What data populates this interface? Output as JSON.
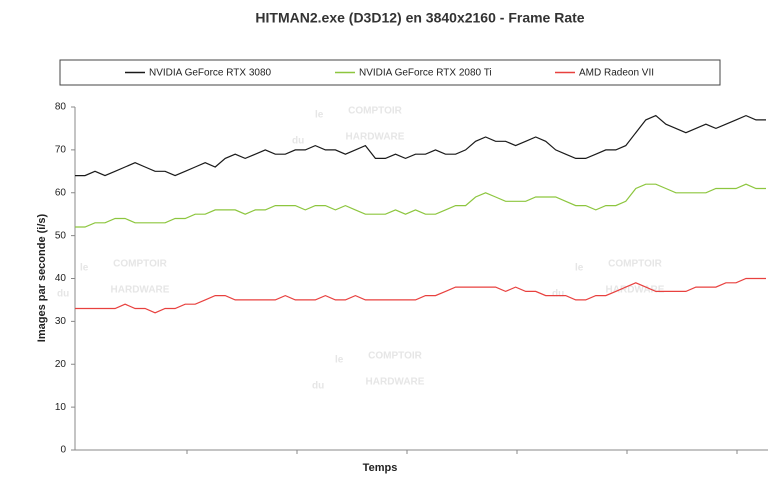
{
  "chart_data": {
    "type": "line",
    "title": "HITMAN2.exe (D3D12) en 3840x2160 - Frame Rate",
    "x_label": "Temps",
    "y_label": "Images par seconde (i/s)",
    "ylim": [
      0,
      80
    ],
    "yticks": [
      0,
      10,
      20,
      30,
      40,
      50,
      60,
      70,
      80
    ],
    "grid": false,
    "legend": "top",
    "watermark": {
      "top": "le",
      "main": "COMPTOIR",
      "sub": "du",
      "brand": "HARDWARE"
    },
    "series": [
      {
        "name": "NVIDIA GeForce RTX 3080",
        "color": "#1a1a1a",
        "values": [
          64,
          64,
          65,
          64,
          65,
          66,
          67,
          66,
          65,
          65,
          64,
          65,
          66,
          67,
          66,
          68,
          69,
          68,
          69,
          70,
          69,
          69,
          70,
          70,
          71,
          70,
          70,
          69,
          70,
          71,
          68,
          68,
          69,
          68,
          69,
          69,
          70,
          69,
          69,
          70,
          72,
          73,
          72,
          72,
          71,
          72,
          73,
          72,
          70,
          69,
          68,
          68,
          69,
          70,
          70,
          71,
          74,
          77,
          78,
          76,
          75,
          74,
          75,
          76,
          75,
          76,
          77,
          78,
          77,
          77
        ]
      },
      {
        "name": "NVIDIA GeForce RTX 2080 Ti",
        "color": "#8dc63f",
        "values": [
          52,
          52,
          53,
          53,
          54,
          54,
          53,
          53,
          53,
          53,
          54,
          54,
          55,
          55,
          56,
          56,
          56,
          55,
          56,
          56,
          57,
          57,
          57,
          56,
          57,
          57,
          56,
          57,
          56,
          55,
          55,
          55,
          56,
          55,
          56,
          55,
          55,
          56,
          57,
          57,
          59,
          60,
          59,
          58,
          58,
          58,
          59,
          59,
          59,
          58,
          57,
          57,
          56,
          57,
          57,
          58,
          61,
          62,
          62,
          61,
          60,
          60,
          60,
          60,
          61,
          61,
          61,
          62,
          61,
          61
        ]
      },
      {
        "name": "AMD Radeon VII",
        "color": "#e8413f",
        "values": [
          33,
          33,
          33,
          33,
          33,
          34,
          33,
          33,
          32,
          33,
          33,
          34,
          34,
          35,
          36,
          36,
          35,
          35,
          35,
          35,
          35,
          36,
          35,
          35,
          35,
          36,
          35,
          35,
          36,
          35,
          35,
          35,
          35,
          35,
          35,
          36,
          36,
          37,
          38,
          38,
          38,
          38,
          38,
          37,
          38,
          37,
          37,
          36,
          36,
          36,
          35,
          35,
          36,
          36,
          37,
          38,
          39,
          38,
          37,
          37,
          37,
          37,
          38,
          38,
          38,
          39,
          39,
          40,
          40,
          40
        ]
      }
    ]
  }
}
